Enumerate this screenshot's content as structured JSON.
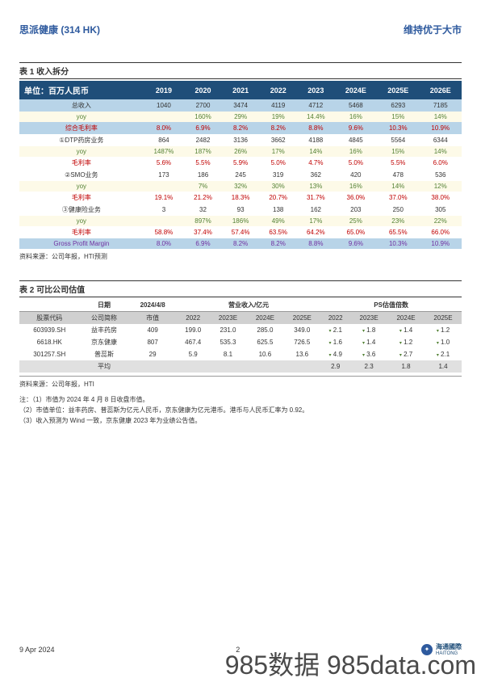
{
  "header": {
    "left": "思派健康 (314 HK)",
    "right": "维持优于大市"
  },
  "table1": {
    "title": "表 1 收入拆分",
    "unit_label": "单位：百万人民币",
    "years": [
      "2019",
      "2020",
      "2021",
      "2022",
      "2023",
      "2024E",
      "2025E",
      "2026E"
    ],
    "rows": [
      {
        "label": "总收入",
        "cls": "blue-row",
        "cells": [
          "1040",
          "2700",
          "3474",
          "4119",
          "4712",
          "5468",
          "6293",
          "7185"
        ]
      },
      {
        "label": "yoy",
        "cls": "pale-row green-text",
        "cells": [
          "",
          "160%",
          "29%",
          "19%",
          "14.4%",
          "16%",
          "15%",
          "14%"
        ]
      },
      {
        "label": "综合毛利率",
        "cls": "blue-row red-text",
        "cells": [
          "8.0%",
          "6.9%",
          "8.2%",
          "8.2%",
          "8.8%",
          "9.6%",
          "10.3%",
          "10.9%"
        ]
      },
      {
        "label": "①DTP药房业务",
        "cls": "",
        "cells": [
          "864",
          "2482",
          "3136",
          "3662",
          "4188",
          "4845",
          "5564",
          "6344"
        ]
      },
      {
        "label": "yoy",
        "cls": "pale-row green-text",
        "cells": [
          "1487%",
          "187%",
          "26%",
          "17%",
          "14%",
          "16%",
          "15%",
          "14%"
        ]
      },
      {
        "label": "毛利率",
        "cls": "red-text",
        "cells": [
          "5.6%",
          "5.5%",
          "5.9%",
          "5.0%",
          "4.7%",
          "5.0%",
          "5.5%",
          "6.0%"
        ]
      },
      {
        "label": "②SMO业务",
        "cls": "",
        "cells": [
          "173",
          "186",
          "245",
          "319",
          "362",
          "420",
          "478",
          "536"
        ]
      },
      {
        "label": "yoy",
        "cls": "pale-row green-text",
        "cells": [
          "",
          "7%",
          "32%",
          "30%",
          "13%",
          "16%",
          "14%",
          "12%"
        ]
      },
      {
        "label": "毛利率",
        "cls": "red-text",
        "cells": [
          "19.1%",
          "21.2%",
          "18.3%",
          "20.7%",
          "31.7%",
          "36.0%",
          "37.0%",
          "38.0%"
        ]
      },
      {
        "label": "③健康险业务",
        "cls": "",
        "cells": [
          "3",
          "32",
          "93",
          "138",
          "162",
          "203",
          "250",
          "305"
        ]
      },
      {
        "label": "yoy",
        "cls": "pale-row green-text",
        "cells": [
          "",
          "897%",
          "186%",
          "49%",
          "17%",
          "25%",
          "23%",
          "22%"
        ]
      },
      {
        "label": "毛利率",
        "cls": "red-text",
        "cells": [
          "58.8%",
          "37.4%",
          "57.4%",
          "63.5%",
          "64.2%",
          "65.0%",
          "65.5%",
          "66.0%"
        ]
      },
      {
        "label": "Gross Profit Margin",
        "cls": "blue-row purple-text",
        "cells": [
          "8.0%",
          "6.9%",
          "8.2%",
          "8.2%",
          "8.8%",
          "9.6%",
          "10.3%",
          "10.9%"
        ]
      }
    ],
    "source": "资料来源：公司年报，HTI预测"
  },
  "table2": {
    "title": "表 2 可比公司估值",
    "header_groups": {
      "date": "日期",
      "date_val": "2024/4/8",
      "rev": "营业收入/亿元",
      "ps": "PS估值倍数"
    },
    "cols": [
      "股票代码",
      "公司简称",
      "市值",
      "2022",
      "2023E",
      "2024E",
      "2025E",
      "2022",
      "2023E",
      "2024E",
      "2025E"
    ],
    "rows": [
      {
        "code": "603939.SH",
        "name": "益丰药房",
        "mkt": "409",
        "rev": [
          "199.0",
          "231.0",
          "285.0",
          "349.0"
        ],
        "ps": [
          "2.1",
          "1.8",
          "1.4",
          "1.2"
        ]
      },
      {
        "code": "6618.HK",
        "name": "京东健康",
        "mkt": "807",
        "rev": [
          "467.4",
          "535.3",
          "625.5",
          "726.5"
        ],
        "ps": [
          "1.6",
          "1.4",
          "1.2",
          "1.0"
        ]
      },
      {
        "code": "301257.SH",
        "name": "普蕊斯",
        "mkt": "29",
        "rev": [
          "5.9",
          "8.1",
          "10.6",
          "13.6"
        ],
        "ps": [
          "4.9",
          "3.6",
          "2.7",
          "2.1"
        ]
      }
    ],
    "avg": {
      "label": "平均",
      "ps": [
        "2.9",
        "2.3",
        "1.8",
        "1.4"
      ]
    },
    "source": "资料来源：公司年报，HTI",
    "notes": [
      "注：（1）市值为 2024 年 4 月 8 日收盘市值。",
      "（2）市值单位：益丰药房、普蕊斯为亿元人民币，京东健康为亿元港币。港币与人民币汇率为 0.92。",
      "（3）收入预测为 Wind 一致，京东健康 2023 年为业绩公告值。"
    ]
  },
  "footer": {
    "date": "9 Apr 2024",
    "page": "2",
    "logo_text": "海通國際",
    "logo_sub": "HAITONG"
  },
  "watermark": "985数据 985data.com"
}
